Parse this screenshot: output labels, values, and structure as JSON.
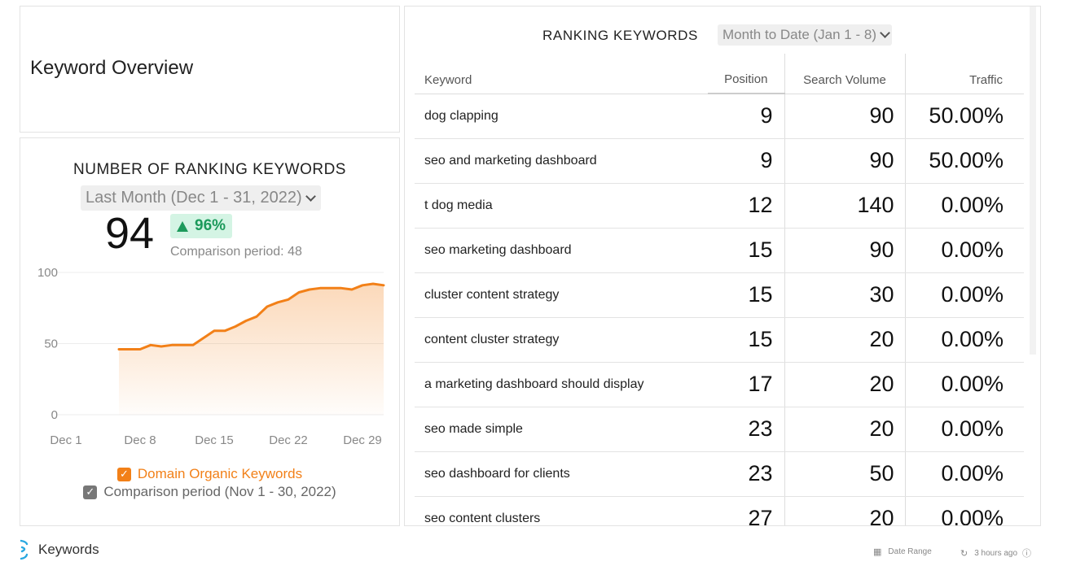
{
  "overview": {
    "title": "Keyword Overview"
  },
  "ranking_count": {
    "title": "NUMBER OF RANKING KEYWORDS",
    "date_range": "Last Month (Dec 1 - 31, 2022)",
    "value": "94",
    "change": "96%",
    "comparison": "Comparison period: 48",
    "legend_primary": "Domain Organic Keywords",
    "legend_comparison": "Comparison period (Nov 1 - 30, 2022)",
    "colors": {
      "primary": "#f28018",
      "positive": "#1c9a5b"
    }
  },
  "chart_data": {
    "type": "area",
    "title": "",
    "xlabel": "",
    "ylabel": "",
    "x_ticks": [
      "Dec 1",
      "Dec 8",
      "Dec 15",
      "Dec 22",
      "Dec 29"
    ],
    "y_ticks": [
      "0",
      "50",
      "100"
    ],
    "ylim": [
      0,
      100
    ],
    "xlim": [
      1,
      31
    ],
    "grid": true,
    "legend": "bottom",
    "series": [
      {
        "name": "Domain Organic Keywords",
        "x": [
          6,
          7,
          8,
          9,
          10,
          11,
          12,
          13,
          14,
          15,
          16,
          17,
          18,
          19,
          20,
          21,
          22,
          23,
          24,
          25,
          26,
          27,
          28,
          29,
          30,
          31
        ],
        "values": [
          46,
          46,
          46,
          49,
          48,
          49,
          49,
          49,
          54,
          59,
          59,
          62,
          66,
          69,
          76,
          79,
          81,
          86,
          88,
          89,
          89,
          89,
          88,
          91,
          92,
          91
        ]
      }
    ]
  },
  "ranking_table": {
    "title": "RANKING KEYWORDS",
    "date_range": "Month to Date (Jan 1 - 8)",
    "columns": [
      "Keyword",
      "Position",
      "Search Volume",
      "Traffic"
    ],
    "rows": [
      {
        "keyword": "dog clapping",
        "position": "9",
        "volume": "90",
        "traffic": "50.00%"
      },
      {
        "keyword": "seo and marketing dashboard",
        "position": "9",
        "volume": "90",
        "traffic": "50.00%"
      },
      {
        "keyword": "t dog media",
        "position": "12",
        "volume": "140",
        "traffic": "0.00%"
      },
      {
        "keyword": "seo marketing dashboard",
        "position": "15",
        "volume": "90",
        "traffic": "0.00%"
      },
      {
        "keyword": "cluster content strategy",
        "position": "15",
        "volume": "30",
        "traffic": "0.00%"
      },
      {
        "keyword": "content cluster strategy",
        "position": "15",
        "volume": "20",
        "traffic": "0.00%"
      },
      {
        "keyword": "a marketing dashboard should display",
        "position": "17",
        "volume": "20",
        "traffic": "0.00%"
      },
      {
        "keyword": "seo made simple",
        "position": "23",
        "volume": "20",
        "traffic": "0.00%"
      },
      {
        "keyword": "seo dashboard for clients",
        "position": "23",
        "volume": "50",
        "traffic": "0.00%"
      },
      {
        "keyword": "seo content clusters",
        "position": "27",
        "volume": "20",
        "traffic": "0.00%"
      }
    ]
  },
  "footer": {
    "label": "Keywords",
    "date_range": "Date Range",
    "updated": "3 hours ago"
  }
}
